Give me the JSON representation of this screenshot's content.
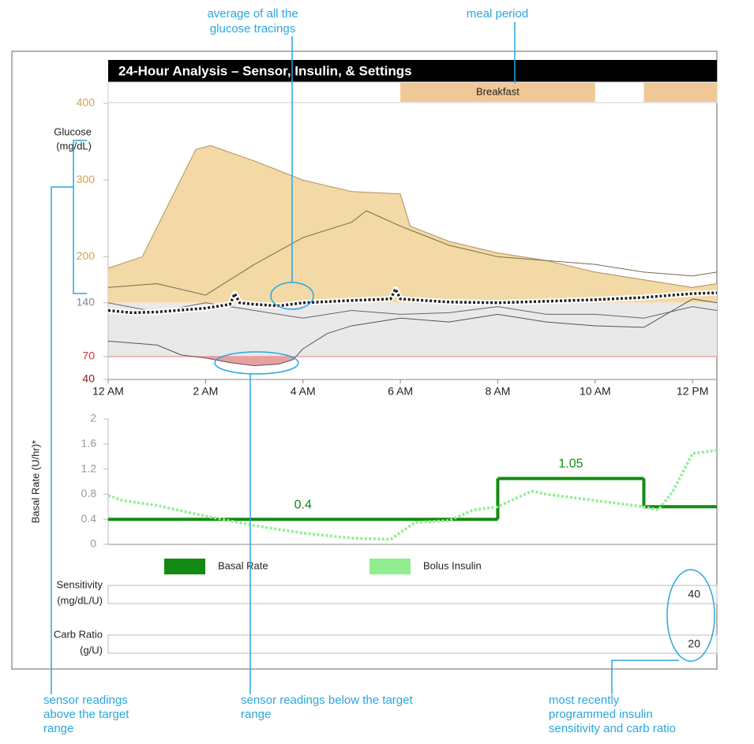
{
  "annotations": [
    {
      "lines": [
        "average of all the",
        "glucose tracings"
      ]
    },
    {
      "lines": [
        "meal period"
      ]
    },
    {
      "lines": [
        "sensor readings",
        "above the target",
        "range"
      ]
    },
    {
      "lines": [
        "sensor readings below the target",
        "range"
      ]
    },
    {
      "lines": [
        "most recently",
        "programmed insulin",
        "sensitivity and carb ratio"
      ]
    }
  ],
  "chart_data": [
    {
      "type": "line",
      "title": "24-Hour Analysis – Sensor, Insulin, & Settings",
      "ylabel": [
        "Glucose",
        "(mg/dL)"
      ],
      "meal_periods": [
        {
          "label": "Breakfast",
          "start": 6,
          "end": 10,
          "color": "#f0c896"
        },
        {
          "start": 11,
          "end": 12.5,
          "color": "#f0c896"
        }
      ],
      "xlim": [
        0,
        12.5
      ],
      "xticks": [
        {
          "value": 0,
          "label": "12 AM"
        },
        {
          "value": 2,
          "label": "2 AM"
        },
        {
          "value": 4,
          "label": "4 AM"
        },
        {
          "value": 6,
          "label": "6 AM"
        },
        {
          "value": 8,
          "label": "8 AM"
        },
        {
          "value": 10,
          "label": "10 AM"
        },
        {
          "value": 12,
          "label": "12 PM"
        }
      ],
      "ylim": [
        40,
        400
      ],
      "yticks": [
        40,
        70,
        140,
        200,
        300,
        400
      ],
      "ytick_colors": [
        "#8b1a1a",
        "#e03030",
        "#888888",
        "#d4a04a",
        "#d4a04a",
        "#d4a04a"
      ],
      "target_range": [
        70,
        140
      ],
      "target_color": "#e9e9e9",
      "low_line_color": "#f0a0a0",
      "series": [
        {
          "x": [
            0,
            0.7,
            1.8,
            2.1,
            3,
            4,
            5,
            6,
            6.2,
            7,
            8,
            9,
            10,
            11,
            12,
            12.5
          ],
          "values": [
            185,
            200,
            340,
            345,
            325,
            300,
            285,
            282,
            240,
            220,
            205,
            195,
            180,
            170,
            160,
            165
          ],
          "color": "#b09060",
          "fill": "#f2d9a6",
          "fill_to": 140,
          "fill_side": "above"
        },
        {
          "x": [
            0,
            1,
            2,
            3,
            4,
            5,
            5.3,
            6,
            7,
            8,
            9,
            10,
            11,
            12,
            12.5
          ],
          "values": [
            160,
            165,
            150,
            190,
            225,
            245,
            260,
            240,
            215,
            200,
            195,
            190,
            180,
            175,
            180
          ],
          "color": "#7a6a50"
        },
        {
          "x": [
            0,
            1,
            2,
            3,
            4,
            5,
            6,
            7,
            8,
            9,
            10,
            11,
            12,
            12.5
          ],
          "values": [
            140,
            128,
            140,
            130,
            120,
            130,
            125,
            127,
            135,
            125,
            125,
            120,
            135,
            130
          ],
          "color": "#666666"
        },
        {
          "x": [
            0,
            1,
            1.5,
            2,
            2.5,
            3,
            3.5,
            3.8,
            4,
            4.5,
            5,
            6,
            7,
            8,
            9,
            10,
            11,
            12,
            12.5
          ],
          "values": [
            90,
            85,
            72,
            68,
            62,
            58,
            60,
            66,
            80,
            100,
            110,
            120,
            115,
            125,
            115,
            110,
            108,
            145,
            140
          ],
          "color": "#555555",
          "fill": "#e8a0a0",
          "fill_to": 70,
          "fill_side": "below"
        },
        {
          "x": [
            0,
            0.5,
            1,
            2,
            2.5,
            2.6,
            2.7,
            3,
            3.5,
            4,
            5,
            5.8,
            5.9,
            6,
            7,
            8,
            9,
            10,
            11,
            12,
            12.5
          ],
          "values": [
            130,
            127,
            128,
            133,
            138,
            152,
            140,
            138,
            136,
            140,
            143,
            145,
            158,
            145,
            141,
            140,
            142,
            144,
            147,
            152,
            153
          ],
          "color": "#222222",
          "style": "dotted",
          "halo": "#ffffff"
        }
      ]
    },
    {
      "type": "line",
      "ylabel": "Basal Rate (U/hr)*",
      "xlim": [
        0,
        12.5
      ],
      "ylim": [
        0,
        2
      ],
      "yticks": [
        0,
        0.4,
        0.8,
        1.2,
        1.6,
        2
      ],
      "series": [
        {
          "name": "Basal Rate",
          "color": "#138a13",
          "step": true,
          "x": [
            0,
            8,
            11
          ],
          "values": [
            0.4,
            1.05,
            0.6
          ],
          "show_labels": [
            true,
            true,
            false
          ]
        },
        {
          "name": "Bolus Insulin",
          "color": "#90ee90",
          "style": "dotted",
          "x": [
            0,
            0.3,
            1,
            2,
            3,
            4,
            5,
            5.8,
            6.3,
            7,
            7.5,
            8,
            8.7,
            9,
            10,
            11,
            11.3,
            11.6,
            12,
            12.5
          ],
          "values": [
            0.78,
            0.7,
            0.62,
            0.45,
            0.3,
            0.18,
            0.1,
            0.08,
            0.35,
            0.38,
            0.55,
            0.6,
            0.85,
            0.8,
            0.7,
            0.6,
            0.55,
            0.85,
            1.45,
            1.5
          ]
        }
      ]
    }
  ],
  "settings_rows": [
    {
      "label": [
        "Sensitivity",
        "(mg/dL/U)"
      ],
      "value": 40
    },
    {
      "label": [
        "Carb Ratio",
        "(g/U)"
      ],
      "value": 20
    }
  ]
}
